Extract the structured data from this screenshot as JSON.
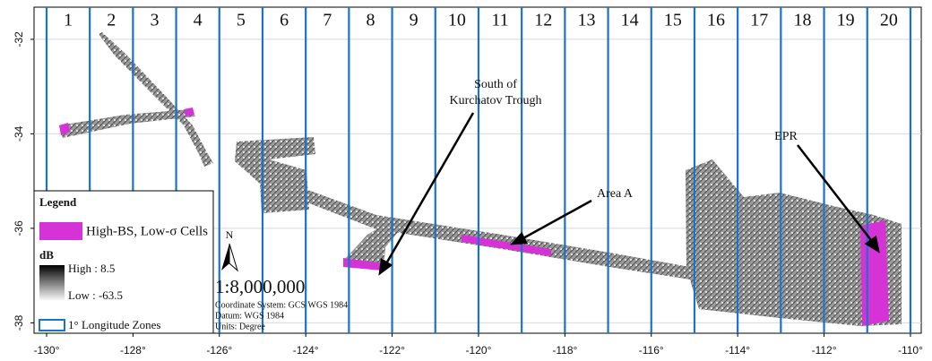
{
  "map": {
    "xlim": [
      -130.29,
      -109.75
    ],
    "ylim": [
      -38.22,
      -31.32
    ],
    "xticks": [
      {
        "value": -130,
        "label": "-130°"
      },
      {
        "value": -128,
        "label": "-128°"
      },
      {
        "value": -126,
        "label": "-126°"
      },
      {
        "value": -124,
        "label": "-124°"
      },
      {
        "value": -122,
        "label": "-122°"
      },
      {
        "value": -120,
        "label": "-120°"
      },
      {
        "value": -118,
        "label": "-118°"
      },
      {
        "value": -116,
        "label": "-116°"
      },
      {
        "value": -114,
        "label": "-114°"
      },
      {
        "value": -112,
        "label": "-112°"
      },
      {
        "value": -110,
        "label": "-110°"
      }
    ],
    "yticks": [
      -32,
      -34,
      -36,
      -38
    ],
    "zones": [
      "1",
      "2",
      "3",
      "4",
      "5",
      "6",
      "7",
      "8",
      "9",
      "10",
      "11",
      "12",
      "13",
      "14",
      "15",
      "16",
      "17",
      "18",
      "19",
      "20"
    ],
    "annotations": [
      {
        "lines": [
          "South of",
          "Kurchatov Trough"
        ]
      },
      {
        "lines": [
          "Area A"
        ]
      },
      {
        "lines": [
          "EPR"
        ]
      }
    ]
  },
  "legend": {
    "title": "Legend",
    "highlight": "High-BS, Low-σ Cells",
    "db_title": "dB",
    "high": "High : 8.5",
    "low": "Low : -63.5",
    "zones": "1° Longitude Zones"
  },
  "scale": {
    "north": "N",
    "ratio": "1:8,000,000",
    "info": [
      "Coordinate System: GCS WGS 1984",
      "Datum: WGS 1984",
      "Units: Degree"
    ]
  }
}
